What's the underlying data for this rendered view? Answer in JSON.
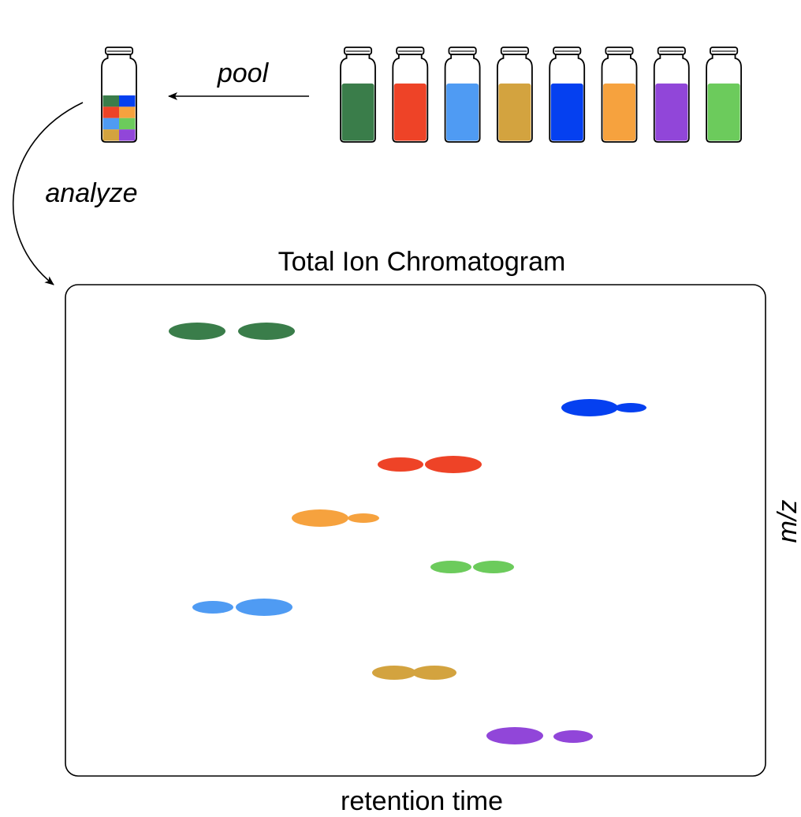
{
  "labels": {
    "pool": "pool",
    "analyze": "analyze",
    "chart_title": "Total Ion Chromatogram",
    "x_axis": "retention time",
    "y_axis": "m/z"
  },
  "colors": {
    "dark_green": "#3a7d4a",
    "red": "#ee4327",
    "light_blue": "#4f9bf3",
    "gold": "#d3a33f",
    "blue": "#0540f0",
    "orange": "#f6a23e",
    "purple": "#9146d9",
    "light_green": "#6ccb5c",
    "outline": "#000000"
  },
  "sample_vials": [
    {
      "name": "vial-dark-green",
      "color": "dark_green"
    },
    {
      "name": "vial-red",
      "color": "red"
    },
    {
      "name": "vial-light-blue",
      "color": "light_blue"
    },
    {
      "name": "vial-gold",
      "color": "gold"
    },
    {
      "name": "vial-blue",
      "color": "blue"
    },
    {
      "name": "vial-orange",
      "color": "orange"
    },
    {
      "name": "vial-purple",
      "color": "purple"
    },
    {
      "name": "vial-light-green",
      "color": "light_green"
    }
  ],
  "pooled_vial": {
    "grid": [
      [
        "dark_green",
        "blue"
      ],
      [
        "red",
        "orange"
      ],
      [
        "light_blue",
        "light_green"
      ],
      [
        "gold",
        "purple"
      ]
    ]
  },
  "chromatogram_peaks": [
    {
      "name": "peak-dark-green-1",
      "color": "dark_green"
    },
    {
      "name": "peak-dark-green-2",
      "color": "dark_green"
    },
    {
      "name": "peak-blue-1",
      "color": "blue"
    },
    {
      "name": "peak-blue-2",
      "color": "blue"
    },
    {
      "name": "peak-red-1",
      "color": "red"
    },
    {
      "name": "peak-red-2",
      "color": "red"
    },
    {
      "name": "peak-orange-1",
      "color": "orange"
    },
    {
      "name": "peak-orange-2",
      "color": "orange"
    },
    {
      "name": "peak-light-green-1",
      "color": "light_green"
    },
    {
      "name": "peak-light-green-2",
      "color": "light_green"
    },
    {
      "name": "peak-light-blue-1",
      "color": "light_blue"
    },
    {
      "name": "peak-light-blue-2",
      "color": "light_blue"
    },
    {
      "name": "peak-gold-1",
      "color": "gold"
    },
    {
      "name": "peak-gold-2",
      "color": "gold"
    },
    {
      "name": "peak-purple-1",
      "color": "purple"
    },
    {
      "name": "peak-purple-2",
      "color": "purple"
    }
  ]
}
